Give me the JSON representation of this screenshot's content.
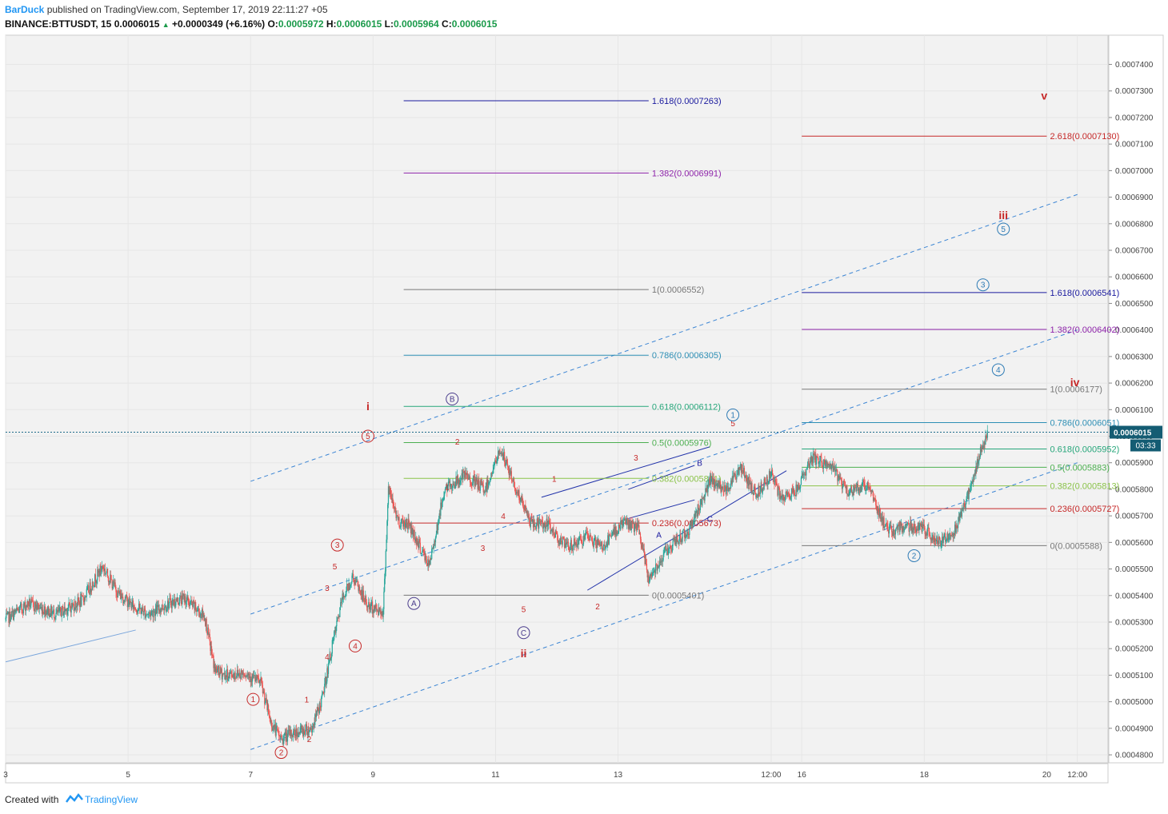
{
  "header": {
    "author": "BarDuck",
    "published": "published on TradingView.com, September 17, 2019 22:11:27 +05",
    "symbol": "BINANCE:BTTUSDT, 15",
    "last": "0.0006015",
    "change": "+0.0000349 (+6.16%)",
    "o_label": "O:",
    "o_value": "0.0005972",
    "h_label": "H:",
    "h_value": "0.0006015",
    "l_label": "L:",
    "l_value": "0.0005964",
    "c_label": "C:",
    "c_value": "0.0006015"
  },
  "footer": {
    "created_with": "Created with",
    "brand": "TradingView"
  },
  "chart_data": {
    "type": "candlestick",
    "symbol": "BINANCE:BTTUSDT",
    "interval": "15",
    "ylim": [
      0.000477,
      0.000751
    ],
    "y_ticks": [
      "0.0004800",
      "0.0004900",
      "0.0005000",
      "0.0005100",
      "0.0005200",
      "0.0005300",
      "0.0005400",
      "0.0005500",
      "0.0005600",
      "0.0005700",
      "0.0005800",
      "0.0005900",
      "0.0006000",
      "0.0006100",
      "0.0006200",
      "0.0006300",
      "0.0006400",
      "0.0006500",
      "0.0006600",
      "0.0006700",
      "0.0006800",
      "0.0006900",
      "0.0007000",
      "0.0007100",
      "0.0007200",
      "0.0007300",
      "0.0007400"
    ],
    "x_ticks": [
      "3",
      "5",
      "7",
      "9",
      "11",
      "13",
      "12:00",
      "16",
      "18",
      "20",
      "12:00"
    ],
    "x_range": [
      "2019-09-03",
      "2019-09-21"
    ],
    "grid": true,
    "last_price": "0.0006015",
    "countdown": "03:33",
    "colors": {
      "up": "#26a69a",
      "down": "#ef5350",
      "background": "#f2f2f2"
    },
    "price_path": [
      [
        "09-03 00:00",
        0.000531
      ],
      [
        "09-03 09:00",
        0.000537
      ],
      [
        "09-03 20:00",
        0.000533
      ],
      [
        "09-04 06:00",
        0.000538
      ],
      [
        "09-04 14:00",
        0.000551
      ],
      [
        "09-04 20:00",
        0.000541
      ],
      [
        "09-05 02:00",
        0.000536
      ],
      [
        "09-05 08:00",
        0.000533
      ],
      [
        "09-05 16:00",
        0.000537
      ],
      [
        "09-05 22:00",
        0.000539
      ],
      [
        "09-06 06:00",
        0.000532
      ],
      [
        "09-06 10:00",
        0.000512
      ],
      [
        "09-06 14:00",
        0.00051
      ],
      [
        "09-06 22:00",
        0.000511
      ],
      [
        "09-07 04:00",
        0.000507
      ],
      [
        "09-07 08:00",
        0.000492
      ],
      [
        "09-07 12:00",
        0.000486
      ],
      [
        "09-07 16:00",
        0.000488
      ],
      [
        "09-08 00:00",
        0.00049
      ],
      [
        "09-08 04:00",
        0.000501
      ],
      [
        "09-08 08:00",
        0.000521
      ],
      [
        "09-08 12:00",
        0.000539
      ],
      [
        "09-08 16:00",
        0.000547
      ],
      [
        "09-08 22:00",
        0.000536
      ],
      [
        "09-09 04:00",
        0.000534
      ],
      [
        "09-09 06:00",
        0.00058
      ],
      [
        "09-09 10:00",
        0.000568
      ],
      [
        "09-09 14:00",
        0.000567
      ],
      [
        "09-09 22:00",
        0.000551
      ],
      [
        "09-10 04:00",
        0.00058
      ],
      [
        "09-10 12:00",
        0.000585
      ],
      [
        "09-10 20:00",
        0.00058
      ],
      [
        "09-11 02:00",
        0.000595
      ],
      [
        "09-11 08:00",
        0.00058
      ],
      [
        "09-11 14:00",
        0.000567
      ],
      [
        "09-11 20:00",
        0.000567
      ],
      [
        "09-12 04:00",
        0.000558
      ],
      [
        "09-12 12:00",
        0.000562
      ],
      [
        "09-12 18:00",
        0.000558
      ],
      [
        "09-13 02:00",
        0.000568
      ],
      [
        "09-13 08:00",
        0.000565
      ],
      [
        "09-13 12:00",
        0.000546
      ],
      [
        "09-13 18:00",
        0.000556
      ],
      [
        "09-14 04:00",
        0.000565
      ],
      [
        "09-14 12:00",
        0.000583
      ],
      [
        "09-14 18:00",
        0.00058
      ],
      [
        "09-15 00:00",
        0.000588
      ],
      [
        "09-15 06:00",
        0.000578
      ],
      [
        "09-15 12:00",
        0.000586
      ],
      [
        "09-15 16:00",
        0.000576
      ],
      [
        "09-15 22:00",
        0.00058
      ],
      [
        "09-16 04:00",
        0.000592
      ],
      [
        "09-16 12:00",
        0.000588
      ],
      [
        "09-16 18:00",
        0.000579
      ],
      [
        "09-17 02:00",
        0.000582
      ],
      [
        "09-17 06:00",
        0.000572
      ],
      [
        "09-17 10:00",
        0.000564
      ],
      [
        "09-17 16:00",
        0.000566
      ],
      [
        "09-17 22:00",
        0.000566
      ],
      [
        "09-18 06:00",
        0.00056
      ],
      [
        "09-18 12:00",
        0.000565
      ],
      [
        "09-18 18:00",
        0.00058
      ],
      [
        "09-18 22:00",
        0.000594
      ],
      [
        "09-19 01:00",
        0.0006015
      ]
    ],
    "fib_levels": [
      {
        "label": "1.618(0.0007263)",
        "price": 0.0007263,
        "color": "#1a1a9e"
      },
      {
        "label": "1.382(0.0006991)",
        "price": 0.0006991,
        "color": "#8e24aa"
      },
      {
        "label": "1(0.0006552)",
        "price": 0.0006552,
        "color": "#787878"
      },
      {
        "label": "0.786(0.0006305)",
        "price": 0.0006305,
        "color": "#2e8fb5"
      },
      {
        "label": "0.618(0.0006112)",
        "price": 0.0006112,
        "color": "#26a67a"
      },
      {
        "label": "0.5(0.0005976)",
        "price": 0.0005976,
        "color": "#4caf50"
      },
      {
        "label": "0.382(0.0005841)",
        "price": 0.0005841,
        "color": "#8bc34a"
      },
      {
        "label": "0.236(0.0005673)",
        "price": 0.0005673,
        "color": "#c62828"
      },
      {
        "label": "0(0.0005401)",
        "price": 0.0005401,
        "color": "#787878"
      },
      {
        "label": "2.618(0.0007130)",
        "price": 0.000713,
        "color": "#c62828"
      },
      {
        "label": "1.618(0.0006541)",
        "price": 0.0006541,
        "color": "#1a1a9e"
      },
      {
        "label": "1.382(0.0006402)",
        "price": 0.0006402,
        "color": "#8e24aa"
      },
      {
        "label": "1(0.0006177)",
        "price": 0.0006177,
        "color": "#787878"
      },
      {
        "label": "0.786(0.0006051)",
        "price": 0.0006051,
        "color": "#2e8fb5"
      },
      {
        "label": "0.618(0.0005952)",
        "price": 0.0005952,
        "color": "#26a67a"
      },
      {
        "label": "0.5(0.0005883)",
        "price": 0.0005883,
        "color": "#4caf50"
      },
      {
        "label": "0.382(0.0005813)",
        "price": 0.0005813,
        "color": "#8bc34a"
      },
      {
        "label": "0.236(0.0005727)",
        "price": 0.0005727,
        "color": "#c62828"
      },
      {
        "label": "0(0.0005588)",
        "price": 0.0005588,
        "color": "#787878"
      }
    ],
    "wave_labels": [
      {
        "text": "1",
        "circled": true,
        "color": "#c62828",
        "time": "09-07 01:00",
        "price": 0.0005009
      },
      {
        "text": "2",
        "circled": true,
        "color": "#c62828",
        "time": "09-07 12:00",
        "price": 0.0004809
      },
      {
        "text": "3",
        "circled": true,
        "color": "#c62828",
        "time": "09-08 10:00",
        "price": 0.000559
      },
      {
        "text": "4",
        "circled": true,
        "color": "#c62828",
        "time": "09-08 17:00",
        "price": 0.000521
      },
      {
        "text": "5",
        "circled": true,
        "color": "#c62828",
        "time": "09-08 22:00",
        "price": 0.0006
      },
      {
        "text": "i",
        "circled": false,
        "color": "#c62828",
        "time": "09-08 22:00",
        "price": 0.000611
      },
      {
        "text": "1",
        "circled": false,
        "color": "#c62828",
        "time": "09-07 22:00",
        "price": 0.000501
      },
      {
        "text": "2",
        "circled": false,
        "color": "#c62828",
        "time": "09-07 23:00",
        "price": 0.000486
      },
      {
        "text": "3",
        "circled": false,
        "color": "#c62828",
        "time": "09-08 06:00",
        "price": 0.000543
      },
      {
        "text": "4",
        "circled": false,
        "color": "#c62828",
        "time": "09-08 06:00",
        "price": 0.000517
      },
      {
        "text": "5",
        "circled": false,
        "color": "#c62828",
        "time": "09-08 09:00",
        "price": 0.000551
      },
      {
        "text": "A",
        "circled": true,
        "color": "#4a3c8c",
        "time": "09-09 16:00",
        "price": 0.000537
      },
      {
        "text": "B",
        "circled": true,
        "color": "#4a3c8c",
        "time": "09-10 07:00",
        "price": 0.000614
      },
      {
        "text": "C",
        "circled": true,
        "color": "#4a3c8c",
        "time": "09-11 11:00",
        "price": 0.000526
      },
      {
        "text": "ii",
        "circled": false,
        "color": "#c62828",
        "time": "09-11 11:00",
        "price": 0.000518
      },
      {
        "text": "1",
        "circled": false,
        "color": "#c62828",
        "time": "09-10 05:00",
        "price": 0.000581
      },
      {
        "text": "2",
        "circled": false,
        "color": "#c62828",
        "time": "09-10 09:00",
        "price": 0.000598
      },
      {
        "text": "3",
        "circled": false,
        "color": "#c62828",
        "time": "09-10 19:00",
        "price": 0.000558
      },
      {
        "text": "4",
        "circled": false,
        "color": "#c62828",
        "time": "09-11 03:00",
        "price": 0.00057
      },
      {
        "text": "5",
        "circled": false,
        "color": "#c62828",
        "time": "09-11 11:00",
        "price": 0.000535
      },
      {
        "text": "1",
        "circled": false,
        "color": "#c62828",
        "time": "09-11 23:00",
        "price": 0.000584
      },
      {
        "text": "2",
        "circled": false,
        "color": "#c62828",
        "time": "09-12 16:00",
        "price": 0.000536
      },
      {
        "text": "3",
        "circled": false,
        "color": "#c62828",
        "time": "09-13 07:00",
        "price": 0.000592
      },
      {
        "text": "A",
        "circled": false,
        "color": "#1a1a9e",
        "time": "09-13 16:00",
        "price": 0.000563
      },
      {
        "text": "B",
        "circled": false,
        "color": "#1a1a9e",
        "time": "09-14 08:00",
        "price": 0.00059
      },
      {
        "text": "C",
        "circled": false,
        "color": "#1a1a9e",
        "time": "09-14 12:00",
        "price": 0.000569
      },
      {
        "text": "5",
        "circled": false,
        "color": "#c62828",
        "time": "09-14 21:00",
        "price": 0.000605
      },
      {
        "text": "1",
        "circled": true,
        "color": "#2e7bb5",
        "time": "09-14 21:00",
        "price": 0.000608
      },
      {
        "text": "2",
        "circled": true,
        "color": "#2e7bb5",
        "time": "09-17 20:00",
        "price": 0.000555
      },
      {
        "text": "3",
        "circled": true,
        "color": "#2e7bb5",
        "time": "09-18 23:00",
        "price": 0.000657
      },
      {
        "text": "4",
        "circled": true,
        "color": "#2e7bb5",
        "time": "09-19 05:00",
        "price": 0.000625
      },
      {
        "text": "5",
        "circled": true,
        "color": "#2e7bb5",
        "time": "09-19 07:00",
        "price": 0.000678
      },
      {
        "text": "iii",
        "circled": false,
        "color": "#c62828",
        "time": "09-19 07:00",
        "price": 0.000683
      },
      {
        "text": "iv",
        "circled": false,
        "color": "#c62828",
        "time": "09-20 11:00",
        "price": 0.00062
      },
      {
        "text": "v",
        "circled": false,
        "color": "#c62828",
        "time": "09-19 23:00",
        "price": 0.000728
      }
    ]
  }
}
